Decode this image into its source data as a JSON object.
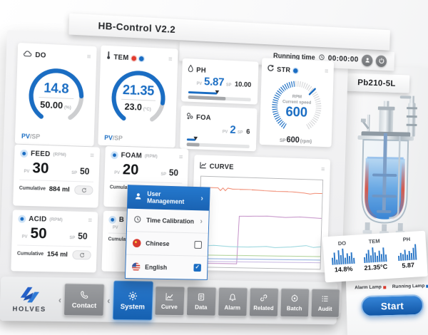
{
  "app": {
    "title": "HB-Control V2.2",
    "running_time_label": "Running time",
    "running_time_value": "00:00:00"
  },
  "icons": {
    "chevron_left": "‹",
    "chevron_right": "›",
    "menu_glyph": "≡",
    "check_glyph": "✓"
  },
  "colors": {
    "accent": "#1a6dc3",
    "alarm_red": "#e23b2e",
    "nav_gray": "#8e9194"
  },
  "gauges": {
    "do": {
      "label": "DO",
      "pv": "14.8",
      "sp": "50.00",
      "unit": "(%)",
      "footer_pv": "PV",
      "footer_sp": "/SP"
    },
    "tem": {
      "label": "TEM",
      "pv": "21.35",
      "sp": "23.0",
      "unit": "(°C)",
      "footer_pv": "PV",
      "footer_sp": "/SP"
    },
    "ph": {
      "label": "PH",
      "pv_label": "PV",
      "pv": "5.87",
      "sp_label": "SP",
      "sp": "10.00"
    },
    "foa": {
      "label": "FOA",
      "pv_label": "PV",
      "pv": "2",
      "sp_label": "SP",
      "sp": "6"
    },
    "str": {
      "label": "STR",
      "rpm": "RPM",
      "speed_label": "Current speed",
      "value": "600",
      "sp_label": "SP",
      "sp": "600",
      "unit": "(rpm)"
    }
  },
  "pumps": {
    "pv_label": "PV",
    "sp_label": "SP",
    "cumulative_label": "Cumulative",
    "feed": {
      "label": "FEED",
      "unit": "(RPM)",
      "pv": "30",
      "sp": "50",
      "cumulative": "884 ml"
    },
    "foam": {
      "label": "FOAM",
      "unit": "(RPM)",
      "pv": "20",
      "sp": "50",
      "cumulative": ""
    },
    "acid": {
      "label": "ACID",
      "unit": "(RPM)",
      "pv": "50",
      "sp": "50",
      "cumulative": "154 ml"
    },
    "base": {
      "label": "B",
      "unit": "",
      "pv": "",
      "sp": "",
      "cumulative": ""
    }
  },
  "curve_panel": {
    "label": "CURVE",
    "chart_data": {
      "type": "line",
      "axes_visible": false,
      "series": [
        {
          "name": "orange",
          "color": "#f0846a",
          "points": [
            [
              0,
              12
            ],
            [
              8,
              12
            ],
            [
              14,
              12
            ],
            [
              16,
              15
            ],
            [
              18,
              12
            ],
            [
              20,
              15
            ],
            [
              22,
              12
            ],
            [
              26,
              13
            ],
            [
              40,
              13
            ],
            [
              60,
              14
            ],
            [
              75,
              14
            ],
            [
              85,
              15
            ],
            [
              90,
              16
            ],
            [
              94,
              15
            ],
            [
              100,
              15
            ]
          ]
        },
        {
          "name": "purple-step",
          "color": "#c08ac4",
          "points": [
            [
              0,
              96
            ],
            [
              31,
              96
            ],
            [
              32,
              43
            ],
            [
              55,
              42
            ],
            [
              70,
              43
            ],
            [
              82,
              42
            ],
            [
              100,
              43
            ]
          ]
        },
        {
          "name": "cyan",
          "color": "#8fd2da",
          "points": [
            [
              0,
              77
            ],
            [
              12,
              76
            ],
            [
              25,
              77
            ],
            [
              40,
              77
            ],
            [
              55,
              76
            ],
            [
              62,
              77
            ],
            [
              75,
              76
            ],
            [
              88,
              74
            ],
            [
              94,
              76
            ],
            [
              100,
              75
            ]
          ]
        },
        {
          "name": "green",
          "color": "#a9cf90",
          "points": [
            [
              0,
              87
            ],
            [
              100,
              86
            ]
          ]
        },
        {
          "name": "blue",
          "color": "#84a9dc",
          "points": [
            [
              0,
              91
            ],
            [
              100,
              90
            ]
          ]
        },
        {
          "name": "lavender",
          "color": "#c3b2e0",
          "points": [
            [
              0,
              94
            ],
            [
              100,
              93
            ]
          ]
        }
      ]
    }
  },
  "menu": {
    "items": [
      {
        "label": "User Management",
        "type": "submenu",
        "active": true
      },
      {
        "label": "Time Calibration",
        "type": "submenu",
        "active": false
      },
      {
        "label": "Chinese",
        "type": "checkbox",
        "checked": false
      },
      {
        "label": "English",
        "type": "checkbox",
        "checked": true
      }
    ]
  },
  "nav": {
    "brand": "HOLVES",
    "items": [
      {
        "label": "Contact",
        "active": false
      },
      {
        "label": "System",
        "active": true
      },
      {
        "label": "Curve",
        "active": false
      },
      {
        "label": "Data",
        "active": false
      },
      {
        "label": "Alarm",
        "active": false
      },
      {
        "label": "Related",
        "active": false
      },
      {
        "label": "Batch",
        "active": false
      },
      {
        "label": "Audit",
        "active": false
      }
    ]
  },
  "reactor": {
    "model": "Pb210-5L"
  },
  "stats": {
    "columns": [
      {
        "label": "DO",
        "value": "14.8%",
        "bars": [
          45,
          75,
          30,
          85,
          55,
          95,
          40,
          65,
          50,
          70,
          35
        ]
      },
      {
        "label": "TEM",
        "value": "21.35°C",
        "bars": [
          35,
          55,
          80,
          45,
          90,
          60,
          40,
          70,
          50,
          85,
          45
        ]
      },
      {
        "label": "PH",
        "value": "5.87",
        "bars": [
          30,
          50,
          40,
          65,
          35,
          55,
          45,
          75,
          95
        ]
      }
    ]
  },
  "controls": {
    "alarm_lamp": "Alarm Lamp",
    "running_lamp": "Running Lamp",
    "start": "Start"
  }
}
